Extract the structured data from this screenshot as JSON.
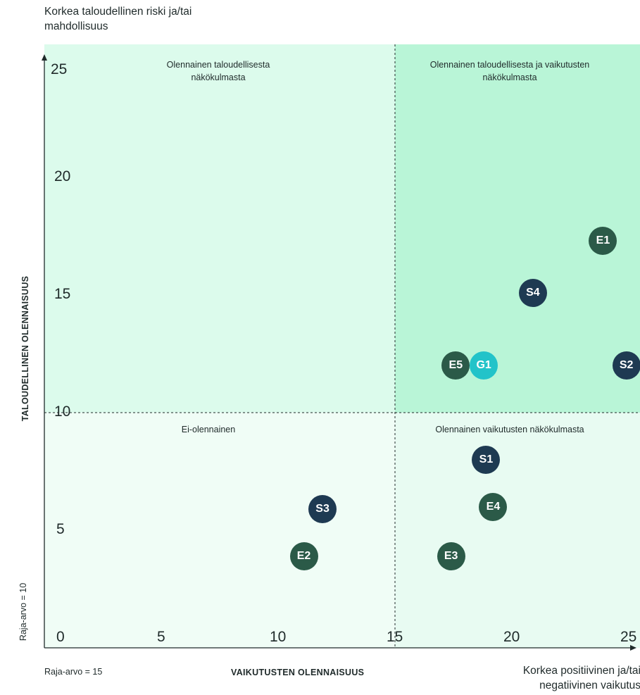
{
  "chart_data": {
    "type": "scatter",
    "title": "",
    "xlabel": "VAIKUTUSTEN OLENNAISUUS",
    "ylabel": "TALOUDELLINEN OLENNAISUUS",
    "xlim": [
      0,
      25
    ],
    "ylim": [
      0,
      25
    ],
    "x_ticks": [
      "0",
      "5",
      "10",
      "15",
      "20",
      "25"
    ],
    "y_ticks": [
      "25",
      "20",
      "15",
      "10",
      "5"
    ],
    "x_threshold": 15,
    "y_threshold": 10,
    "x_threshold_label": "Raja-arvo = 15",
    "y_threshold_label": "Raja-arvo = 10",
    "x_high_label": "Korkea positiivinen ja/tai negatiivinen vaikutus",
    "y_high_label": "Korkea taloudellinen riski ja/tai mahdollisuus",
    "quadrants": {
      "top_left": "Olennainen taloudellisesta näkökulmasta",
      "top_right": "Olennainen taloudellisesta ja vaikutusten näkökulmasta",
      "bottom_left": "Ei-olennainen",
      "bottom_right": "Olennainen vaikutusten näkökulmasta"
    },
    "colors": {
      "E": "#2b5a48",
      "S": "#1e3a52",
      "G": "#22c3c9",
      "quad_top_right": "#b9f5d7",
      "quad_top_left": "#dcfbec",
      "quad_bottom_right": "#e8fbf2",
      "quad_bottom_left": "#f0fdf6"
    },
    "points": [
      {
        "label": "E1",
        "x": 23.9,
        "y": 17.3,
        "group": "E"
      },
      {
        "label": "S4",
        "x": 20.9,
        "y": 15.1,
        "group": "S"
      },
      {
        "label": "E5",
        "x": 17.6,
        "y": 12.0,
        "group": "E"
      },
      {
        "label": "G1",
        "x": 18.8,
        "y": 12.0,
        "group": "G"
      },
      {
        "label": "S2",
        "x": 24.9,
        "y": 12.0,
        "group": "S"
      },
      {
        "label": "S1",
        "x": 18.9,
        "y": 8.0,
        "group": "S"
      },
      {
        "label": "E4",
        "x": 19.2,
        "y": 6.0,
        "group": "E"
      },
      {
        "label": "S3",
        "x": 11.9,
        "y": 5.9,
        "group": "S"
      },
      {
        "label": "E2",
        "x": 11.1,
        "y": 3.9,
        "group": "E"
      },
      {
        "label": "E3",
        "x": 17.4,
        "y": 3.9,
        "group": "E"
      }
    ]
  }
}
